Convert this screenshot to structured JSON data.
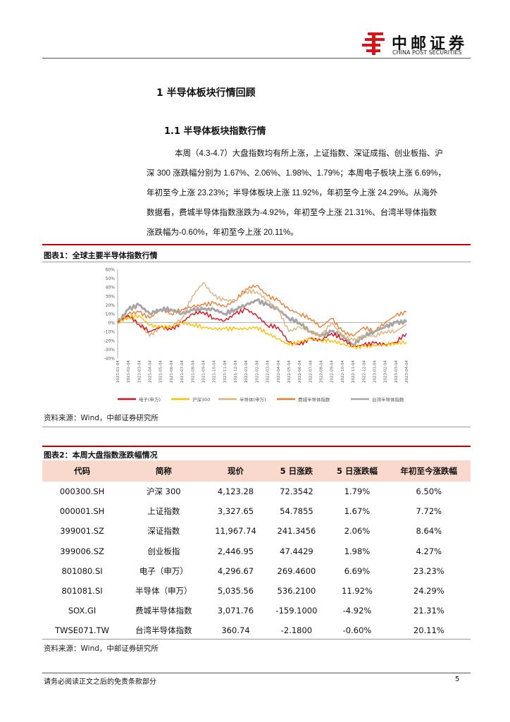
{
  "header": {
    "logo_cn": "中邮证券",
    "logo_en": "CHINA POST SECURITIES"
  },
  "section_title": "1  半导体板块行情回顾",
  "subsection_title": "1.1  半导体板块指数行情",
  "paragraph": [
    "本周（4.3-4.7）大盘指数均有所上涨，上证指数、深证成指、创业板指、沪",
    "深 300 涨跌幅分别为 1.67%、2.06%、1.98%、1.79%；本周电子板块上涨 6.69%，",
    "年初至今上涨 23.23%；半导体板块上涨 11.92%，年初至今上涨 24.29%。从海外",
    "数据看，费城半导体指数涨跌为-4.92%，年初至今上涨 21.31%、台湾半导体指数",
    "涨跌幅为-0.60%，年初至今上涨 20.11%。"
  ],
  "figure1": {
    "title": "图表1：全球主要半导体指数行情",
    "source": "资料来源：Wind，中邮证券研究所"
  },
  "chart_data": {
    "type": "line",
    "title": "全球主要半导体指数行情",
    "ylim": [
      -40,
      60
    ],
    "yticks": [
      "60%",
      "50%",
      "40%",
      "30%",
      "20%",
      "10%",
      "0%",
      "-10%",
      "-20%",
      "-30%",
      "-40%"
    ],
    "x": [
      "2021-01-04",
      "2021-02-04",
      "2021-03-04",
      "2021-04-04",
      "2021-05-04",
      "2021-06-04",
      "2021-07-04",
      "2021-08-04",
      "2021-09-04",
      "2021-10-04",
      "2021-11-04",
      "2021-12-04",
      "2022-01-04",
      "2022-02-04",
      "2022-03-04",
      "2022-04-04",
      "2022-05-04",
      "2022-06-04",
      "2022-07-04",
      "2022-08-04",
      "2022-09-04",
      "2022-10-04",
      "2022-11-04",
      "2022-12-04",
      "2023-01-04",
      "2023-02-04",
      "2023-03-04",
      "2023-04-04"
    ],
    "legend_position": "bottom",
    "series": [
      {
        "name": "电子(申万)",
        "color": "#e0101a",
        "values": [
          0,
          8,
          -2,
          -10,
          -5,
          -8,
          0,
          10,
          12,
          5,
          2,
          10,
          15,
          8,
          -3,
          -5,
          -22,
          -25,
          -18,
          -20,
          -12,
          -18,
          -27,
          -25,
          -23,
          -25,
          -22,
          -12
        ]
      },
      {
        "name": "沪深300",
        "color": "#ffc000",
        "values": [
          0,
          6,
          8,
          -3,
          -5,
          -5,
          0,
          -2,
          -5,
          -7,
          -7,
          -7,
          -7,
          -5,
          -12,
          -18,
          -25,
          -22,
          -18,
          -20,
          -20,
          -24,
          -28,
          -27,
          -26,
          -25,
          -23,
          -22
        ]
      },
      {
        "name": "半导体(申万)",
        "color": "#e0b07a",
        "values": [
          0,
          8,
          0,
          -15,
          -5,
          -5,
          5,
          30,
          45,
          30,
          25,
          25,
          35,
          35,
          25,
          15,
          -10,
          -5,
          -10,
          -15,
          0,
          -15,
          -20,
          -15,
          -15,
          -10,
          -10,
          -2
        ]
      },
      {
        "name": "费城半导体指数",
        "color": "#ed7d31",
        "values": [
          0,
          10,
          12,
          5,
          15,
          10,
          15,
          18,
          20,
          22,
          18,
          25,
          38,
          42,
          30,
          25,
          15,
          10,
          5,
          -5,
          5,
          -10,
          -15,
          -5,
          -10,
          0,
          8,
          12
        ]
      },
      {
        "name": "台湾半导体指数",
        "color": "#a6a6a6",
        "values": [
          0,
          15,
          20,
          10,
          15,
          15,
          10,
          14,
          15,
          15,
          10,
          15,
          20,
          25,
          20,
          15,
          5,
          0,
          -10,
          -15,
          -10,
          -15,
          -25,
          -15,
          -10,
          -5,
          0,
          1
        ]
      }
    ]
  },
  "figure2": {
    "title": "图表2：本周大盘指数涨跌幅情况",
    "source": "资料来源：Wind，中邮证券研究所",
    "columns": [
      "代码",
      "简称",
      "现价",
      "5 日涨跌",
      "5 日涨跌幅",
      "年初至今涨跌幅"
    ],
    "rows": [
      [
        "000300.SH",
        "沪深 300",
        "4,123.28",
        "72.3542",
        "1.79%",
        "6.50%"
      ],
      [
        "000001.SH",
        "上证指数",
        "3,327.65",
        "54.7855",
        "1.67%",
        "7.72%"
      ],
      [
        "399001.SZ",
        "深证指数",
        "11,967.74",
        "241.3456",
        "2.06%",
        "8.64%"
      ],
      [
        "399006.SZ",
        "创业板指",
        "2,446.95",
        "47.4429",
        "1.98%",
        "4.27%"
      ],
      [
        "801080.SI",
        "电子（申万）",
        "4,296.67",
        "269.4600",
        "6.69%",
        "23.23%"
      ],
      [
        "801081.SI",
        "半导体（申万）",
        "5,035.56",
        "536.2100",
        "11.92%",
        "24.29%"
      ],
      [
        "SOX.GI",
        "费城半导体指数",
        "3,071.76",
        "-159.1000",
        "-4.92%",
        "21.31%"
      ],
      [
        "TWSE071.TW",
        "台湾半导体指数",
        "360.74",
        "-2.1800",
        "-0.60%",
        "20.11%"
      ]
    ]
  },
  "footer": {
    "disclaimer": "请务必阅读正文之后的免责条款部分",
    "page": "5"
  }
}
